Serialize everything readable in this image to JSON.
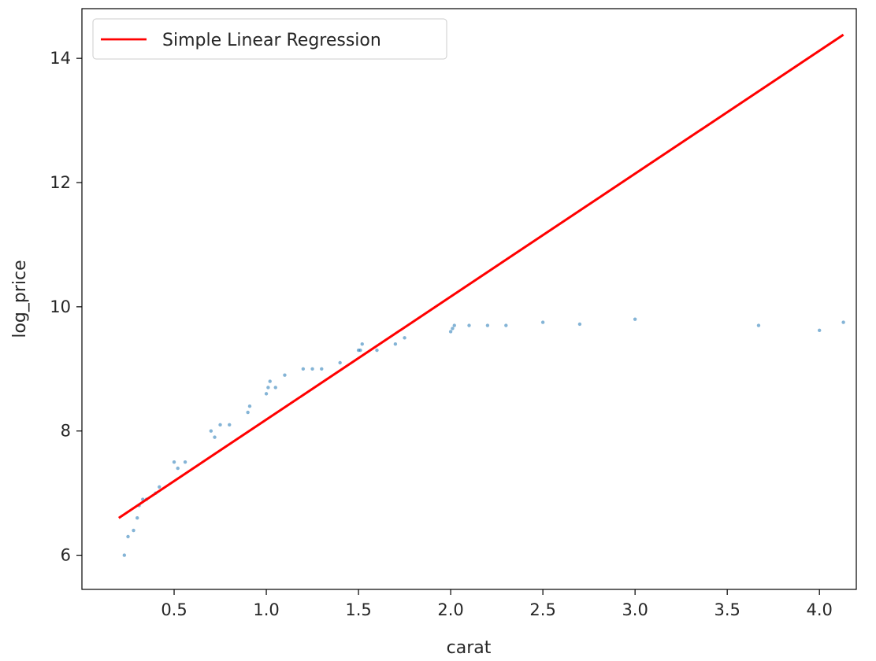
{
  "chart_data": {
    "type": "scatter",
    "title": "",
    "xlabel": "carat",
    "ylabel": "log_price",
    "xlim": [
      0.0,
      4.2
    ],
    "ylim": [
      5.45,
      14.8
    ],
    "xticks": [
      "0.5",
      "1.0",
      "1.5",
      "2.0",
      "2.5",
      "3.0",
      "3.5",
      "4.0"
    ],
    "xtick_values": [
      0.5,
      1.0,
      1.5,
      2.0,
      2.5,
      3.0,
      3.5,
      4.0
    ],
    "yticks": [
      "6",
      "8",
      "10",
      "12",
      "14"
    ],
    "ytick_values": [
      6,
      8,
      10,
      12,
      14
    ],
    "grid": false,
    "legend": {
      "placement": "top-left",
      "entries": [
        "Simple Linear Regression"
      ]
    },
    "series": [
      {
        "name": "Simple Linear Regression",
        "kind": "line",
        "color": "#ff0000",
        "x": [
          0.2,
          4.13
        ],
        "y": [
          6.6,
          14.38
        ]
      },
      {
        "kind": "scatter",
        "color": "#1f77b4",
        "x": [
          0.23,
          0.25,
          0.28,
          0.3,
          0.31,
          0.33,
          0.35,
          0.4,
          0.42,
          0.5,
          0.52,
          0.56,
          0.7,
          0.72,
          0.75,
          0.8,
          0.9,
          0.91,
          1.0,
          1.01,
          1.02,
          1.05,
          1.1,
          1.2,
          1.25,
          1.3,
          1.4,
          1.5,
          1.51,
          1.52,
          1.6,
          1.7,
          1.75,
          2.0,
          2.01,
          2.02,
          2.1,
          2.2,
          2.3,
          2.5,
          2.7,
          3.0,
          3.67,
          4.0,
          4.13
        ],
        "y": [
          6.0,
          6.3,
          6.4,
          6.6,
          6.8,
          6.9,
          6.9,
          7.0,
          7.1,
          7.5,
          7.4,
          7.5,
          8.0,
          7.9,
          8.1,
          8.1,
          8.3,
          8.4,
          8.6,
          8.7,
          8.8,
          8.7,
          8.9,
          9.0,
          9.0,
          9.0,
          9.1,
          9.3,
          9.3,
          9.4,
          9.3,
          9.4,
          9.5,
          9.6,
          9.65,
          9.7,
          9.7,
          9.7,
          9.7,
          9.75,
          9.72,
          9.8,
          9.7,
          9.62,
          9.75
        ]
      }
    ]
  }
}
